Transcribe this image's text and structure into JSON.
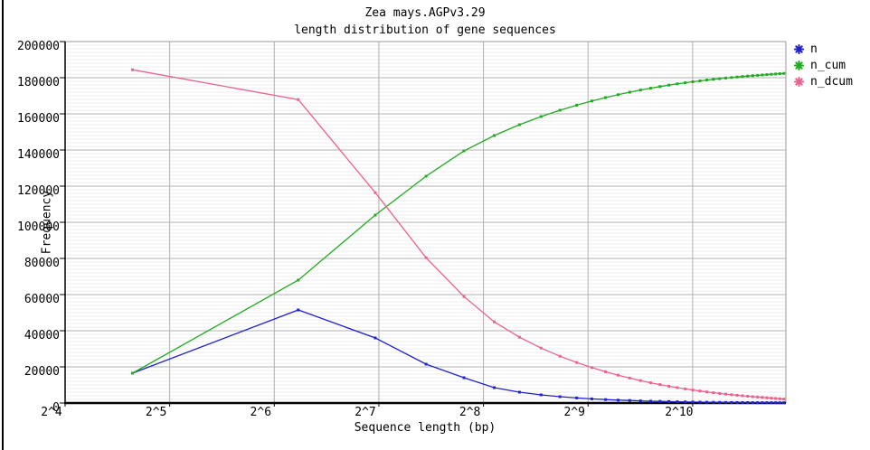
{
  "chart_data": {
    "type": "line",
    "title": "Zea mays.AGPv3.29",
    "subtitle": "length distribution of gene sequences",
    "xlabel": "Sequence length (bp)",
    "ylabel": "Frequency",
    "x_scale": "log2",
    "grid": true,
    "legend_position": "top-right-outside",
    "x_ticks": [
      {
        "label": "2^4",
        "value": 16
      },
      {
        "label": "2^5",
        "value": 32
      },
      {
        "label": "2^6",
        "value": 64
      },
      {
        "label": "2^7",
        "value": 128
      },
      {
        "label": "2^8",
        "value": 256
      },
      {
        "label": "2^9",
        "value": 512
      },
      {
        "label": "2^10",
        "value": 1024
      }
    ],
    "y_ticks": [
      0,
      20000,
      40000,
      60000,
      80000,
      100000,
      120000,
      140000,
      160000,
      180000,
      200000
    ],
    "x_range_bp": [
      16,
      1900
    ],
    "y_range": [
      0,
      200000
    ],
    "colors": {
      "n": "#2222cc",
      "n_cum": "#22aa22",
      "n_dcum": "#ea6292",
      "grid_major": "#b0b0b0",
      "grid_minor": "#ececec",
      "axis": "#000000",
      "border_light": "#999999"
    },
    "x_bp": [
      25,
      75,
      125,
      175,
      225,
      275,
      325,
      375,
      425,
      475,
      525,
      575,
      625,
      675,
      725,
      775,
      825,
      875,
      925,
      975,
      1025,
      1075,
      1125,
      1175,
      1225,
      1275,
      1325,
      1375,
      1425,
      1475,
      1525,
      1575,
      1625,
      1675,
      1725,
      1775,
      1825,
      1875
    ],
    "series": [
      {
        "name": "n",
        "color": "#2222cc",
        "values": [
          16500,
          51500,
          36000,
          21500,
          14000,
          8500,
          6000,
          4500,
          3500,
          2800,
          2300,
          1900,
          1600,
          1400,
          1200,
          1000,
          900,
          800,
          700,
          620,
          550,
          500,
          450,
          400,
          360,
          330,
          300,
          280,
          260,
          240,
          220,
          210,
          200,
          190,
          180,
          170,
          160,
          150
        ]
      },
      {
        "name": "n_cum",
        "color": "#22aa22",
        "values": [
          16500,
          68000,
          104000,
          125500,
          139500,
          148000,
          154000,
          158500,
          162000,
          164800,
          167100,
          169000,
          170600,
          172000,
          173200,
          174200,
          175100,
          175900,
          176600,
          177220,
          177770,
          178270,
          178720,
          179120,
          179480,
          179810,
          180110,
          180390,
          180650,
          180890,
          181110,
          181320,
          181520,
          181710,
          181890,
          182060,
          182220,
          182370
        ]
      },
      {
        "name": "n_dcum",
        "color": "#ea6292",
        "values": [
          184400,
          167900,
          116400,
          80400,
          58900,
          44900,
          36400,
          30400,
          25900,
          22400,
          19600,
          17300,
          15400,
          13800,
          12400,
          11200,
          10200,
          9300,
          8500,
          7800,
          7180,
          6630,
          6130,
          5680,
          5280,
          4920,
          4590,
          4290,
          4010,
          3750,
          3510,
          3290,
          3080,
          2880,
          2690,
          2510,
          2340,
          2180
        ]
      }
    ]
  }
}
